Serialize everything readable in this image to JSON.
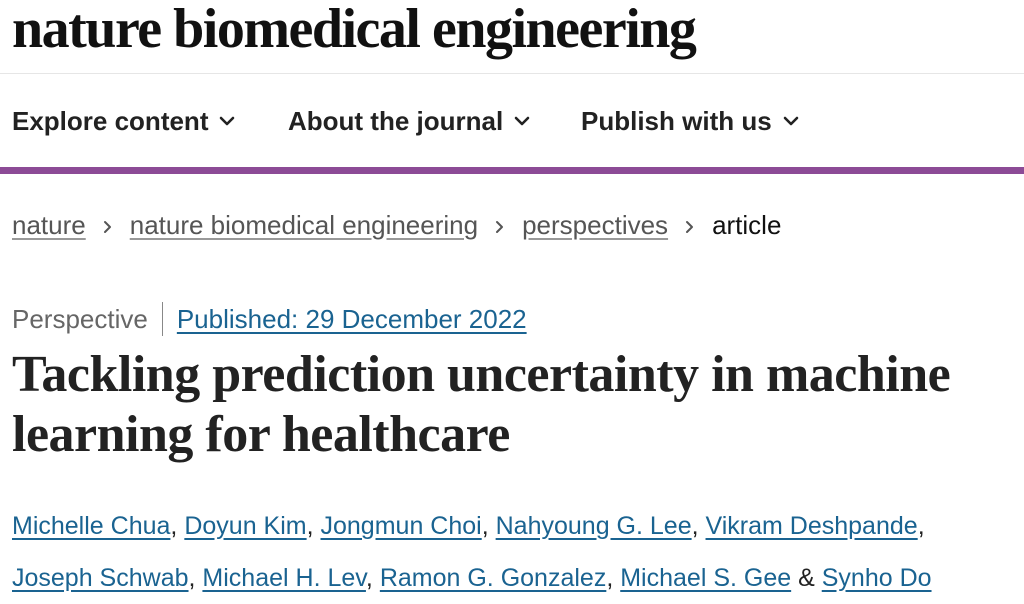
{
  "header": {
    "logo_text": "nature biomedical engineering"
  },
  "nav": {
    "items": [
      {
        "label": "Explore content"
      },
      {
        "label": "About the journal"
      },
      {
        "label": "Publish with us"
      }
    ],
    "accent_color": "#8c4b96"
  },
  "breadcrumb": {
    "items": [
      {
        "label": "nature"
      },
      {
        "label": "nature biomedical engineering"
      },
      {
        "label": "perspectives"
      }
    ],
    "current": "article"
  },
  "article": {
    "type": "Perspective",
    "published": "Published: 29 December 2022",
    "title": "Tackling prediction uncertainty in machine learning for healthcare",
    "authors": [
      "Michelle Chua",
      "Doyun Kim",
      "Jongmun Choi",
      "Nahyoung G. Lee",
      "Vikram Deshpande",
      "Joseph Schwab",
      "Michael H. Lev",
      "Ramon G. Gonzalez",
      "Michael S. Gee",
      "Synho Do"
    ],
    "author_separator": ", ",
    "last_author_separator": " & ",
    "link_color": "#1a6391"
  }
}
